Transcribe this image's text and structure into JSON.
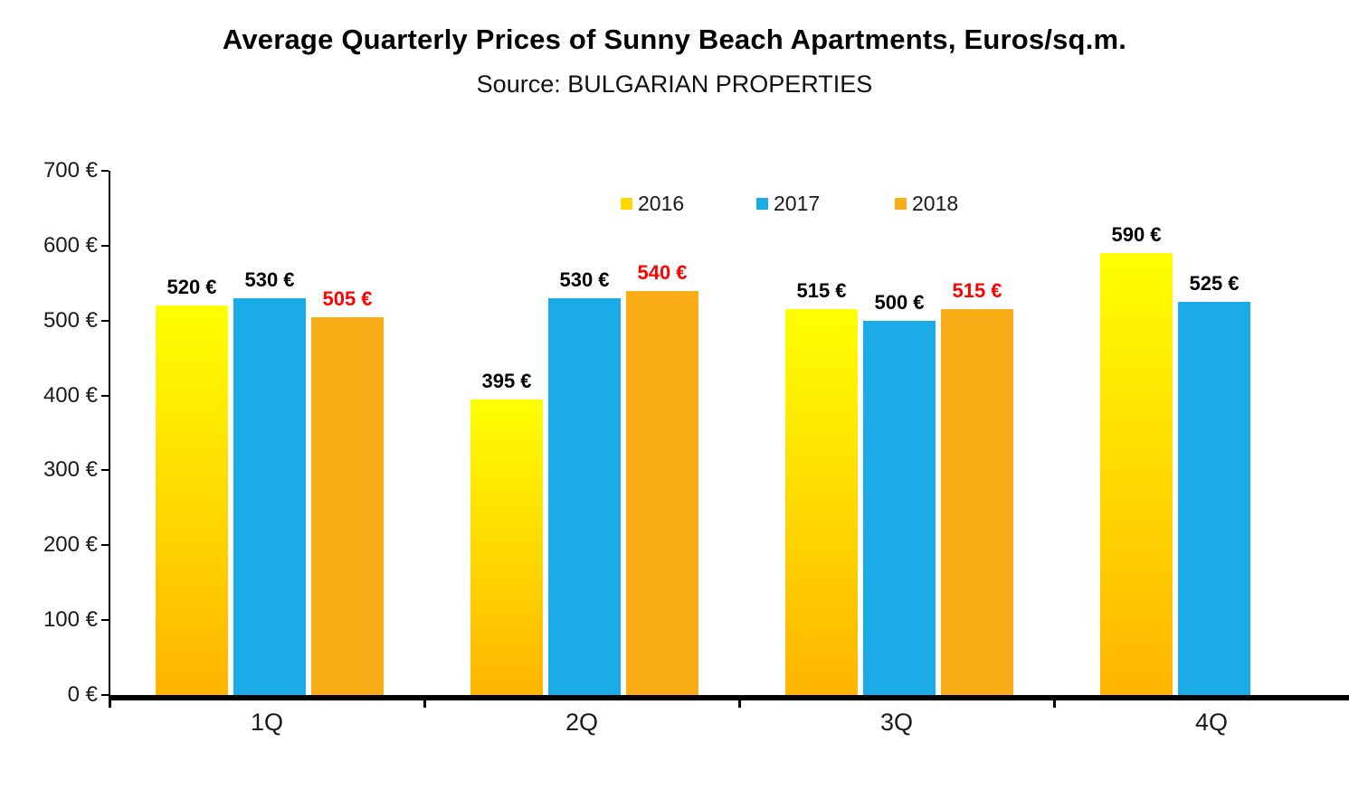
{
  "title": "Average Quarterly Prices of Sunny Beach Apartments, Euros/sq.m.",
  "subtitle": "Source: BULGARIAN PROPERTIES",
  "chart_data": {
    "type": "bar",
    "title": "Average Quarterly Prices of Sunny Beach Apartments, Euros/sq.m.",
    "subtitle": "Source: BULGARIAN PROPERTIES",
    "categories": [
      "1Q",
      "2Q",
      "3Q",
      "4Q"
    ],
    "series": [
      {
        "name": "2016",
        "values": [
          520,
          395,
          515,
          590
        ],
        "labels": [
          "520 €",
          "395 €",
          "515 €",
          "590 €"
        ],
        "label_color": "#000000",
        "fill": {
          "type": "gradient",
          "from": "#FFFF00",
          "to": "#FFB400",
          "swatch": "#FFD800"
        }
      },
      {
        "name": "2017",
        "values": [
          530,
          530,
          500,
          525
        ],
        "labels": [
          "530 €",
          "530 €",
          "500 €",
          "525 €"
        ],
        "label_color": "#000000",
        "fill": {
          "type": "solid",
          "color": "#1BACE8",
          "swatch": "#1BACE8"
        }
      },
      {
        "name": "2018",
        "values": [
          505,
          540,
          515,
          null
        ],
        "labels": [
          "505 €",
          "540 €",
          "515 €",
          null
        ],
        "label_color": "#FF0000",
        "fill": {
          "type": "solid",
          "color": "#FBAD18",
          "swatch": "#FBAD18"
        }
      }
    ],
    "xlabel": "",
    "ylabel": "",
    "ylim": [
      0,
      700
    ],
    "y_ticks": [
      {
        "value": 0,
        "label": "0 €"
      },
      {
        "value": 100,
        "label": "100 €"
      },
      {
        "value": 200,
        "label": "200 €"
      },
      {
        "value": 300,
        "label": "300 €"
      },
      {
        "value": 400,
        "label": "400 €"
      },
      {
        "value": 500,
        "label": "500 €"
      },
      {
        "value": 600,
        "label": "600 €"
      },
      {
        "value": 700,
        "label": "700 €"
      }
    ],
    "grid": false,
    "legend_position": "top-center-inside",
    "legend": [
      "2016",
      "2017",
      "2018"
    ]
  }
}
